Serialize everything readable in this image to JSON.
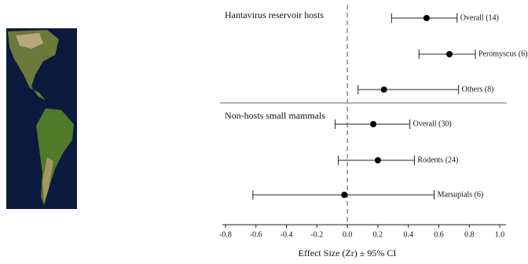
{
  "chart_data": {
    "type": "forest",
    "x_label": "Effect Size (Zr) ± 95% CI",
    "xlim": [
      -0.8,
      1.0
    ],
    "xticks": [
      -0.8,
      -0.6,
      -0.4,
      -0.2,
      {
        "value": 0,
        "label": "0.0"
      },
      0.2,
      0.4,
      0.6,
      0.8,
      {
        "value": 1,
        "label": "1.0"
      }
    ],
    "groups": [
      {
        "name": "Hantavirus reservoir hosts",
        "rows": [
          {
            "label": "Overall (14)",
            "value": 0.52,
            "ci": [
              0.29,
              0.72
            ]
          },
          {
            "label": "Peromyscus (6)",
            "value": 0.67,
            "ci": [
              0.47,
              0.84
            ]
          },
          {
            "label": "Others (8)",
            "value": 0.24,
            "ci": [
              0.07,
              0.73
            ]
          }
        ]
      },
      {
        "name": "Non-hosts small mammals",
        "rows": [
          {
            "label": "Overall (30)",
            "value": 0.17,
            "ci": [
              -0.08,
              0.41
            ]
          },
          {
            "label": "Rodents (24)",
            "value": 0.2,
            "ci": [
              -0.06,
              0.44
            ]
          },
          {
            "label": "Marsupials (6)",
            "value": -0.02,
            "ci": [
              -0.62,
              0.57
            ]
          }
        ]
      }
    ]
  }
}
